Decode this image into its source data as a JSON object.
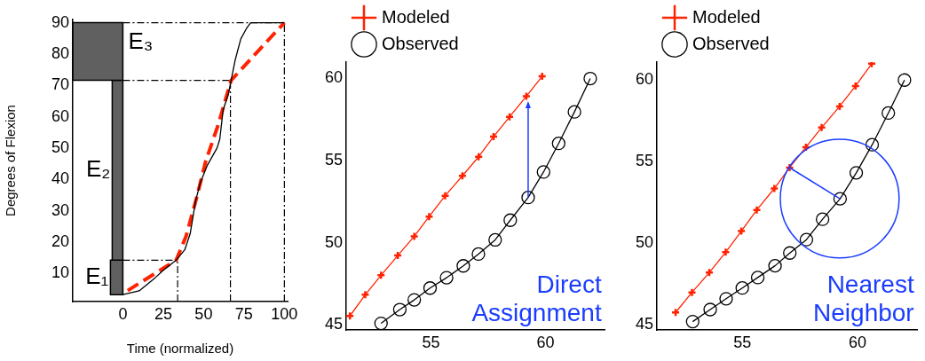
{
  "chart_data": [
    {
      "type": "line",
      "xlabel": "Time (normalized)",
      "ylabel": "Degrees of Flexion",
      "xlim": [
        -31,
        102
      ],
      "ylim": [
        1,
        91
      ],
      "xticks": [
        0,
        25,
        50,
        75,
        100
      ],
      "yticks": [
        10,
        20,
        30,
        40,
        50,
        60,
        70,
        80,
        90
      ],
      "series": [
        {
          "color": "#000000",
          "marker": "none",
          "line_style": "solid",
          "x": [
            0,
            10.1,
            20,
            25,
            33,
            38.3,
            41.7,
            45,
            47.8,
            52.2,
            58.3,
            60,
            62.1,
            65.2,
            67,
            69.6,
            73,
            76.5,
            79.1,
            100
          ],
          "values": [
            3.2,
            4.4,
            8.6,
            11,
            14.2,
            17.5,
            22.7,
            33,
            38.7,
            44.4,
            50,
            52.8,
            62.2,
            67,
            71.6,
            78.2,
            84.8,
            88.1,
            90,
            90
          ]
        },
        {
          "color": "#ff2200",
          "marker": "none",
          "line_style": "dashed",
          "x": [
            3,
            11.3,
            20,
            33,
            39.1,
            46.1,
            51.3,
            59.1,
            67,
            100
          ],
          "values": [
            4.5,
            7.2,
            10,
            14.2,
            21.8,
            35,
            45.8,
            57.5,
            71.6,
            90
          ]
        }
      ],
      "bands": [
        {
          "axis": "y",
          "from": 3.2,
          "to": 14.2,
          "label": "E₁",
          "color": "#606060"
        },
        {
          "axis": "y",
          "from": 14.2,
          "to": 71.6,
          "label": "E₂",
          "color": "#606060"
        },
        {
          "axis": "y",
          "from": 71.6,
          "to": 90,
          "label": "E₃",
          "color": "#606060"
        }
      ],
      "ref_lines": [
        {
          "axis": "y",
          "value": 14.2,
          "line_style": "dashed"
        },
        {
          "axis": "y",
          "value": 71.6,
          "line_style": "dashed"
        },
        {
          "axis": "y",
          "value": 90,
          "line_style": "dashed"
        },
        {
          "axis": "x",
          "value": 33.9,
          "line_style": "dashed"
        },
        {
          "axis": "x",
          "value": 66.6,
          "line_style": "dashed"
        },
        {
          "axis": "x",
          "value": 100,
          "line_style": "dashed"
        }
      ]
    },
    {
      "type": "line",
      "xlim": [
        51.3,
        62.6
      ],
      "ylim": [
        44.7,
        61
      ],
      "xticks": [
        55,
        60
      ],
      "yticks": [
        45,
        50,
        55,
        60
      ],
      "legend": "top left",
      "annotations": [
        "Direct Assignment"
      ],
      "series": [
        {
          "name": "Modeled",
          "color": "#ff2200",
          "marker": "cross",
          "x": [
            51.46,
            52.13,
            52.82,
            53.55,
            54.27,
            54.92,
            55.62,
            56.37,
            57.08,
            57.73,
            58.43,
            59.16,
            59.85
          ],
          "values": [
            45.55,
            46.84,
            48.03,
            49.23,
            50.4,
            51.6,
            52.87,
            54.08,
            55.24,
            56.46,
            57.67,
            58.92,
            60.13
          ]
        },
        {
          "name": "Observed",
          "color": "#000000",
          "marker": "circle",
          "x": [
            52.82,
            53.64,
            54.27,
            54.96,
            55.68,
            56.41,
            57.07,
            57.8,
            58.46,
            59.24,
            59.91,
            60.57,
            61.26,
            61.95
          ],
          "values": [
            45.1,
            45.94,
            46.53,
            47.25,
            47.88,
            48.6,
            49.32,
            50.18,
            51.38,
            52.76,
            54.31,
            56.05,
            57.97,
            60
          ]
        }
      ]
    },
    {
      "type": "line",
      "xlim": [
        51.3,
        62.6
      ],
      "ylim": [
        44.7,
        61.1
      ],
      "xticks": [
        55,
        60
      ],
      "yticks": [
        45,
        50,
        55,
        60
      ],
      "legend": "top left",
      "annotations": [
        "Nearest Neighbor"
      ],
      "series": [
        {
          "name": "Modeled",
          "color": "#ff2200",
          "marker": "cross",
          "x": [
            52.11,
            52.82,
            53.57,
            54.28,
            54.96,
            55.63,
            56.39,
            57.05,
            57.76,
            58.44,
            59.22,
            59.91,
            60.61
          ],
          "values": [
            45.77,
            47.0,
            48.21,
            49.46,
            50.75,
            52.05,
            53.36,
            54.64,
            55.89,
            57.09,
            58.39,
            59.64,
            61.0
          ]
        },
        {
          "name": "Observed",
          "color": "#000000",
          "marker": "circle",
          "x": [
            52.85,
            53.61,
            54.3,
            55,
            55.67,
            56.42,
            57.06,
            57.78,
            58.48,
            59.24,
            59.94,
            60.63,
            61.33,
            62.03
          ],
          "values": [
            45.21,
            45.95,
            46.61,
            47.27,
            47.91,
            48.63,
            49.41,
            50.23,
            51.48,
            52.73,
            54.32,
            56.04,
            57.98,
            60
          ]
        }
      ]
    }
  ]
}
